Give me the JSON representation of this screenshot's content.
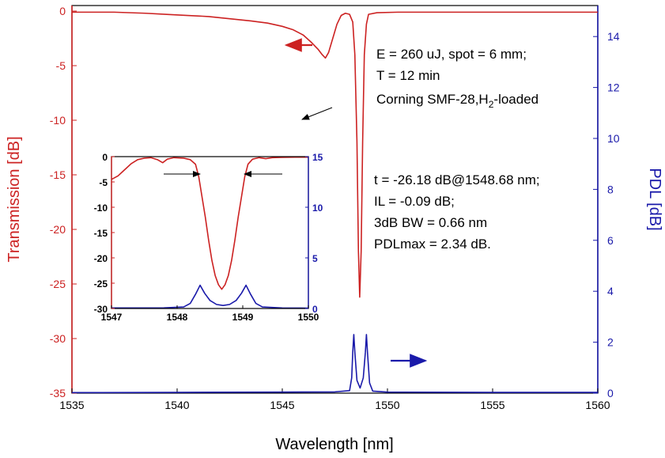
{
  "chart_data": [
    {
      "type": "line",
      "xlabel": "Wavelength [nm]",
      "ylabel": "Transmission [dB]",
      "y2label": "PDL [dB]",
      "xlim": [
        1535,
        1560
      ],
      "ylim": [
        -35,
        0
      ],
      "y2lim": [
        0,
        15
      ],
      "xticks": [
        "1535",
        "1540",
        "1545",
        "1550",
        "1555",
        "1560"
      ],
      "yticks": [
        "0",
        "-5",
        "-10",
        "-15",
        "-20",
        "-25",
        "-30",
        "-35"
      ],
      "y2ticks": [
        "0",
        "2",
        "4",
        "6",
        "8",
        "10",
        "12",
        "14"
      ],
      "series": [
        {
          "axis": "left",
          "color": "#cc2222",
          "points": [
            [
              1535.0,
              -0.1
            ],
            [
              1537.0,
              -0.1
            ],
            [
              1538.5,
              -0.2
            ],
            [
              1539.5,
              -0.3
            ],
            [
              1540.5,
              -0.4
            ],
            [
              1541.5,
              -0.5
            ],
            [
              1542.5,
              -0.7
            ],
            [
              1543.5,
              -0.9
            ],
            [
              1544.3,
              -1.1
            ],
            [
              1545.0,
              -1.4
            ],
            [
              1545.5,
              -1.7
            ],
            [
              1546.0,
              -2.2
            ],
            [
              1546.4,
              -2.9
            ],
            [
              1546.7,
              -3.5
            ],
            [
              1546.9,
              -4.0
            ],
            [
              1547.05,
              -4.3
            ],
            [
              1547.2,
              -3.8
            ],
            [
              1547.4,
              -2.5
            ],
            [
              1547.6,
              -1.2
            ],
            [
              1547.8,
              -0.4
            ],
            [
              1548.0,
              -0.2
            ],
            [
              1548.2,
              -0.3
            ],
            [
              1548.35,
              -1.0
            ],
            [
              1548.45,
              -4.0
            ],
            [
              1548.55,
              -12.0
            ],
            [
              1548.62,
              -22.0
            ],
            [
              1548.68,
              -26.2
            ],
            [
              1548.75,
              -22.0
            ],
            [
              1548.82,
              -12.0
            ],
            [
              1548.9,
              -4.0
            ],
            [
              1549.0,
              -1.2
            ],
            [
              1549.1,
              -0.3
            ],
            [
              1549.5,
              -0.15
            ],
            [
              1550.5,
              -0.1
            ],
            [
              1553.0,
              -0.1
            ],
            [
              1556.0,
              -0.1
            ],
            [
              1560.0,
              -0.1
            ]
          ]
        },
        {
          "axis": "right",
          "color": "#1a1aaa",
          "points": [
            [
              1535.0,
              0.02
            ],
            [
              1540.0,
              0.03
            ],
            [
              1545.0,
              0.04
            ],
            [
              1547.5,
              0.05
            ],
            [
              1548.2,
              0.1
            ],
            [
              1548.3,
              0.6
            ],
            [
              1548.35,
              1.6
            ],
            [
              1548.4,
              2.3
            ],
            [
              1548.45,
              1.6
            ],
            [
              1548.55,
              0.5
            ],
            [
              1548.7,
              0.2
            ],
            [
              1548.85,
              0.6
            ],
            [
              1548.95,
              1.6
            ],
            [
              1549.0,
              2.3
            ],
            [
              1549.05,
              1.6
            ],
            [
              1549.15,
              0.4
            ],
            [
              1549.3,
              0.08
            ],
            [
              1550.0,
              0.04
            ],
            [
              1555.0,
              0.03
            ],
            [
              1560.0,
              0.03
            ]
          ]
        }
      ]
    },
    {
      "type": "line",
      "inset": true,
      "xlim": [
        1547,
        1550
      ],
      "ylim": [
        -30,
        0
      ],
      "y2lim": [
        0,
        15
      ],
      "xticks": [
        "1547",
        "1548",
        "1549",
        "1550"
      ],
      "yticks": [
        "0",
        "-5",
        "-10",
        "-15",
        "-20",
        "-25",
        "-30"
      ],
      "y2ticks": [
        "0",
        "5",
        "10",
        "15"
      ],
      "series": [
        {
          "axis": "left",
          "color": "#cc2222",
          "points": [
            [
              1547.0,
              -4.5
            ],
            [
              1547.1,
              -3.8
            ],
            [
              1547.2,
              -2.6
            ],
            [
              1547.3,
              -1.4
            ],
            [
              1547.4,
              -0.6
            ],
            [
              1547.5,
              -0.3
            ],
            [
              1547.6,
              -0.2
            ],
            [
              1547.7,
              -0.6
            ],
            [
              1547.78,
              -1.2
            ],
            [
              1547.85,
              -0.5
            ],
            [
              1547.95,
              -0.2
            ],
            [
              1548.1,
              -0.3
            ],
            [
              1548.2,
              -0.6
            ],
            [
              1548.28,
              -1.5
            ],
            [
              1548.33,
              -4.0
            ],
            [
              1548.38,
              -8.0
            ],
            [
              1548.43,
              -12.0
            ],
            [
              1548.48,
              -16.5
            ],
            [
              1548.53,
              -20.5
            ],
            [
              1548.58,
              -23.5
            ],
            [
              1548.63,
              -25.3
            ],
            [
              1548.68,
              -26.2
            ],
            [
              1548.73,
              -25.3
            ],
            [
              1548.78,
              -23.5
            ],
            [
              1548.83,
              -20.5
            ],
            [
              1548.88,
              -16.5
            ],
            [
              1548.93,
              -12.0
            ],
            [
              1548.98,
              -8.0
            ],
            [
              1549.03,
              -4.0
            ],
            [
              1549.08,
              -1.5
            ],
            [
              1549.15,
              -0.5
            ],
            [
              1549.25,
              -0.2
            ],
            [
              1549.35,
              -0.4
            ],
            [
              1549.45,
              -0.2
            ],
            [
              1549.6,
              -0.15
            ],
            [
              1549.8,
              -0.1
            ],
            [
              1550.0,
              -0.1
            ]
          ]
        },
        {
          "axis": "right",
          "color": "#1a1aaa",
          "points": [
            [
              1547.0,
              0.05
            ],
            [
              1547.8,
              0.06
            ],
            [
              1548.1,
              0.15
            ],
            [
              1548.2,
              0.5
            ],
            [
              1548.28,
              1.4
            ],
            [
              1548.35,
              2.3
            ],
            [
              1548.42,
              1.5
            ],
            [
              1548.5,
              0.8
            ],
            [
              1548.6,
              0.4
            ],
            [
              1548.7,
              0.3
            ],
            [
              1548.8,
              0.4
            ],
            [
              1548.9,
              0.8
            ],
            [
              1548.98,
              1.5
            ],
            [
              1549.05,
              2.3
            ],
            [
              1549.12,
              1.4
            ],
            [
              1549.2,
              0.5
            ],
            [
              1549.3,
              0.15
            ],
            [
              1549.6,
              0.05
            ],
            [
              1550.0,
              0.04
            ]
          ]
        }
      ]
    }
  ],
  "annotations": {
    "text1": [
      "E = 260 uJ, spot = 6 mm;",
      "T = 12 min"
    ],
    "text1_line3a": "Corning SMF-28,H",
    "text1_line3sub": "2",
    "text1_line3b": "-loaded",
    "text2": [
      "t = -26.18 dB@1548.68 nm;",
      "IL = -0.09 dB;",
      "3dB BW = 0.66 nm",
      "PDLmax = 2.34 dB."
    ]
  },
  "colors": {
    "left_axis": "#cc2222",
    "right_axis": "#1a1aaa",
    "text": "#000000"
  }
}
